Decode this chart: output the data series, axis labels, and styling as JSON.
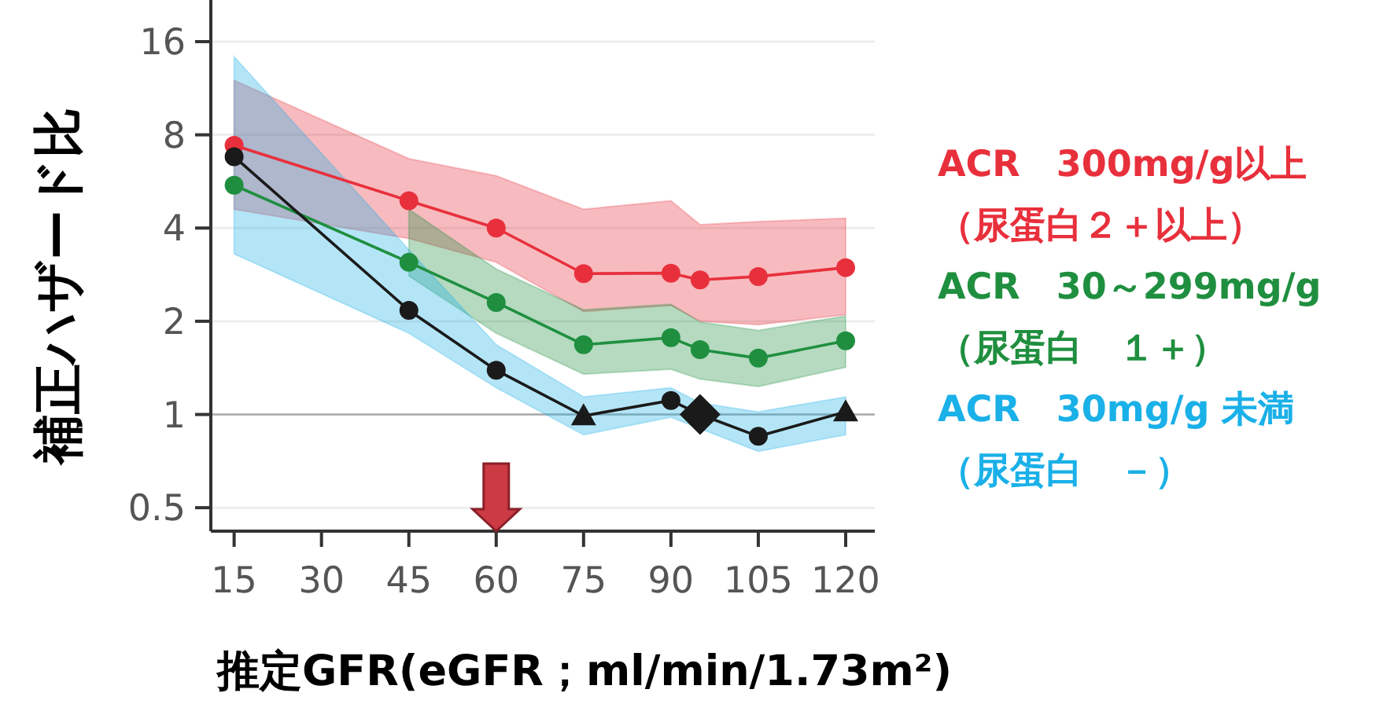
{
  "chart_data": {
    "type": "line",
    "ylabel": "補正ハザード比",
    "xlabel": "推定GFR(eGFR；ml/min/1.73m²)",
    "x": [
      15,
      45,
      60,
      75,
      90,
      95,
      105,
      120
    ],
    "xlim": [
      11,
      125
    ],
    "xticks": [
      15,
      30,
      45,
      60,
      75,
      90,
      105,
      120
    ],
    "ylim": [
      0.42,
      21.3
    ],
    "yticks": [
      0.5,
      1,
      2,
      4,
      8,
      16
    ],
    "log": "y",
    "grid": "y",
    "ref_lines": [
      {
        "axis": "y",
        "value": 1,
        "color": "#aaaaaa"
      }
    ],
    "legend": "right",
    "marker": "circle",
    "series": [
      {
        "name": "ACR　300mg/g以上（尿蛋白２＋以上）",
        "color": "#e8303c",
        "values": [
          7.4,
          4.9,
          4.0,
          2.85,
          2.86,
          2.72,
          2.79,
          2.98
        ],
        "lower": [
          4.6,
          3.7,
          3.1,
          2.15,
          2.25,
          2.0,
          1.95,
          2.1
        ],
        "upper": [
          12,
          6.7,
          5.9,
          4.6,
          4.9,
          4.1,
          4.2,
          4.3
        ]
      },
      {
        "name": "ACR　30～299mg/g（尿蛋白　１＋）",
        "color": "#1f8f3f",
        "values": [
          5.5,
          3.1,
          2.3,
          1.68,
          1.77,
          1.62,
          1.52,
          1.73
        ],
        "lower": [
          null,
          2.8,
          1.83,
          1.35,
          1.4,
          1.3,
          1.23,
          1.42
        ],
        "upper": [
          null,
          4.6,
          2.95,
          2.18,
          2.27,
          1.99,
          1.87,
          2.08
        ]
      },
      {
        "name": "ACR　30mg/g 未満（尿蛋白　－）",
        "color": "#1ab0e8",
        "marker": "none",
        "values": [
          null,
          null,
          null,
          null,
          null,
          null,
          null,
          null
        ],
        "lower": [
          3.3,
          1.83,
          1.22,
          0.86,
          0.98,
          0.9,
          0.76,
          0.86
        ],
        "upper": [
          14.3,
          3.4,
          1.68,
          1.14,
          1.22,
          1.09,
          1.02,
          1.14
        ]
      },
      {
        "color": "#1a1a1a",
        "marker": "none",
        "values": [
          6.8,
          2.17,
          1.39,
          0.99,
          1.11,
          1.0,
          0.85,
          1.02
        ]
      },
      {
        "type": "scatter",
        "color": "#1a1a1a",
        "marker": "circle",
        "x": [
          15,
          45,
          60,
          90,
          105
        ],
        "values": [
          6.8,
          2.17,
          1.39,
          1.11,
          0.85
        ]
      },
      {
        "type": "scatter",
        "color": "#1a1a1a",
        "marker": "triangle",
        "x": [
          75,
          120
        ],
        "values": [
          0.99,
          1.02
        ]
      },
      {
        "type": "scatter",
        "color": "#1a1a1a",
        "marker": "diamond",
        "x": [
          95
        ],
        "values": [
          1.0
        ]
      }
    ]
  }
}
